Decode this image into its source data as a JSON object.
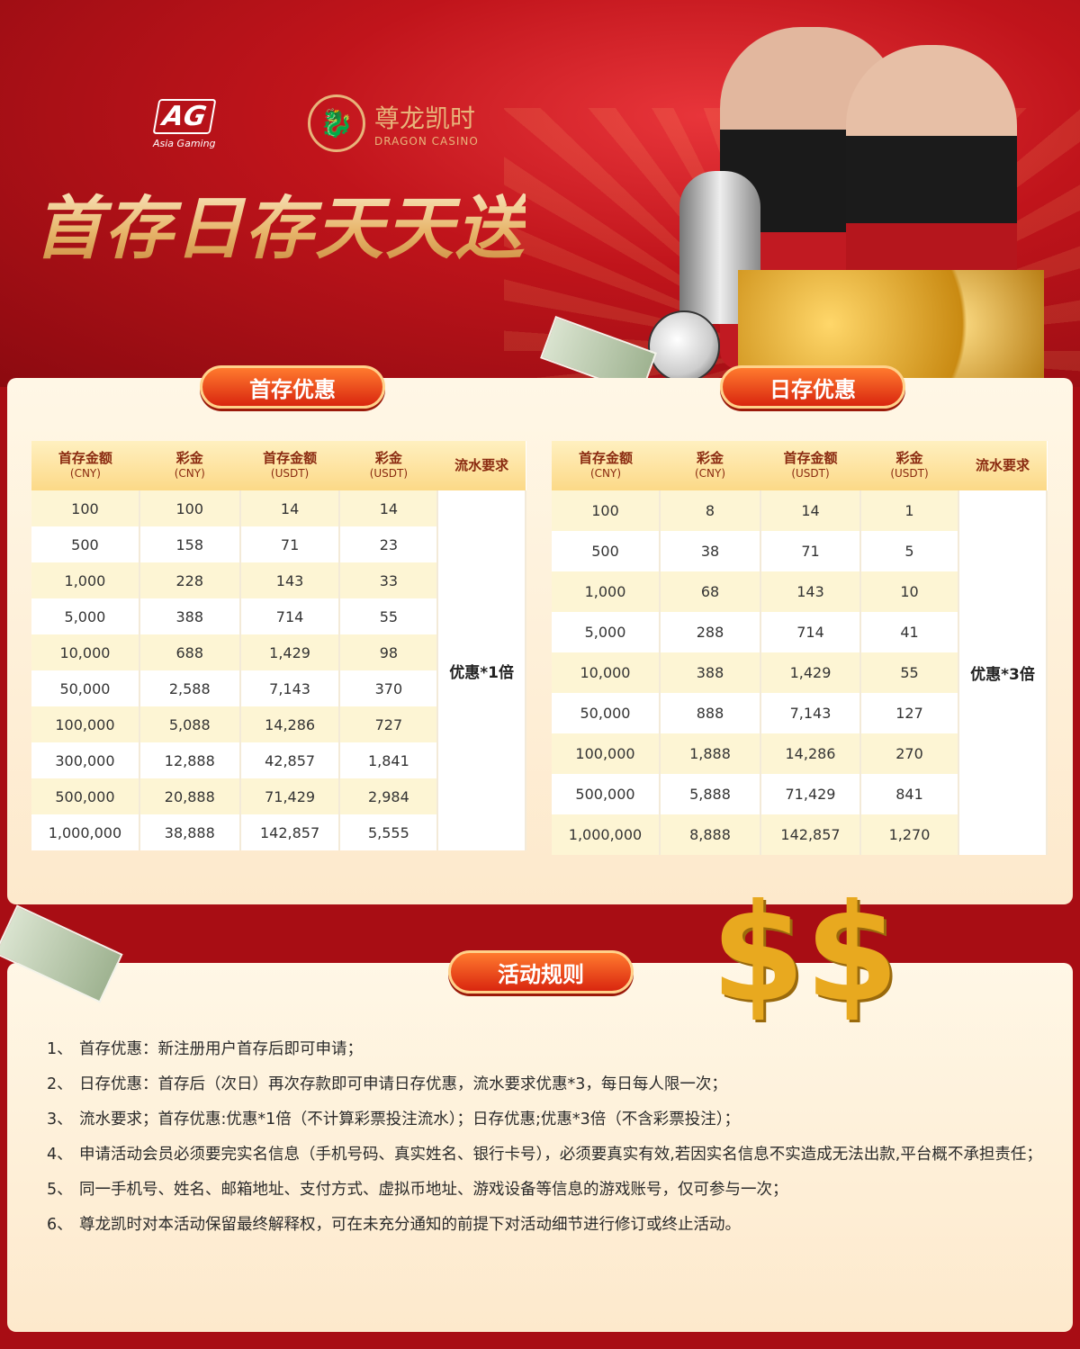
{
  "header": {
    "ag_logo": "AG",
    "ag_sub": "Asia Gaming",
    "casino_cn": "尊龙凯时",
    "casino_en": "DRAGON CASINO",
    "title": "首存日存天天送"
  },
  "colors": {
    "background_red": "#c0141b",
    "panel": "#fff7e6",
    "header_row": "#fcd987",
    "badge": "#e8431a"
  },
  "first_deposit": {
    "badge": "首存优惠",
    "headers": [
      {
        "l1": "首存金额",
        "l2": "(CNY)"
      },
      {
        "l1": "彩金",
        "l2": "(CNY)"
      },
      {
        "l1": "首存金额",
        "l2": "(USDT)"
      },
      {
        "l1": "彩金",
        "l2": "(USDT)"
      },
      {
        "l1": "流水要求",
        "l2": ""
      }
    ],
    "rows": [
      [
        "100",
        "100",
        "14",
        "14"
      ],
      [
        "500",
        "158",
        "71",
        "23"
      ],
      [
        "1,000",
        "228",
        "143",
        "33"
      ],
      [
        "5,000",
        "388",
        "714",
        "55"
      ],
      [
        "10,000",
        "688",
        "1,429",
        "98"
      ],
      [
        "50,000",
        "2,588",
        "7,143",
        "370"
      ],
      [
        "100,000",
        "5,088",
        "14,286",
        "727"
      ],
      [
        "300,000",
        "12,888",
        "42,857",
        "1,841"
      ],
      [
        "500,000",
        "20,888",
        "71,429",
        "2,984"
      ],
      [
        "1,000,000",
        "38,888",
        "142,857",
        "5,555"
      ]
    ],
    "requirement": "优惠*1倍"
  },
  "daily_deposit": {
    "badge": "日存优惠",
    "headers": [
      {
        "l1": "首存金额",
        "l2": "(CNY)"
      },
      {
        "l1": "彩金",
        "l2": "(CNY)"
      },
      {
        "l1": "首存金额",
        "l2": "(USDT)"
      },
      {
        "l1": "彩金",
        "l2": "(USDT)"
      },
      {
        "l1": "流水要求",
        "l2": ""
      }
    ],
    "rows": [
      [
        "100",
        "8",
        "14",
        "1"
      ],
      [
        "500",
        "38",
        "71",
        "5"
      ],
      [
        "1,000",
        "68",
        "143",
        "10"
      ],
      [
        "5,000",
        "288",
        "714",
        "41"
      ],
      [
        "10,000",
        "388",
        "1,429",
        "55"
      ],
      [
        "50,000",
        "888",
        "7,143",
        "127"
      ],
      [
        "100,000",
        "1,888",
        "14,286",
        "270"
      ],
      [
        "500,000",
        "5,888",
        "71,429",
        "841"
      ],
      [
        "1,000,000",
        "8,888",
        "142,857",
        "1,270"
      ]
    ],
    "requirement": "优惠*3倍"
  },
  "rules": {
    "badge": "活动规则",
    "items": [
      {
        "n": "1、",
        "text": "首存优惠：新注册用户首存后即可申请；"
      },
      {
        "n": "2、",
        "text": "日存优惠：首存后（次日）再次存款即可申请日存优惠，流水要求优惠*3，每日每人限一次；"
      },
      {
        "n": "3、",
        "text": "流水要求；首存优惠:优惠*1倍（不计算彩票投注流水）；日存优惠;优惠*3倍（不含彩票投注）；"
      },
      {
        "n": "4、",
        "text": "申请活动会员必须要完实名信息（手机号码、真实姓名、银行卡号），必须要真实有效,若因实名信息不实造成无法出款,平台概不承担责任；"
      },
      {
        "n": "5、",
        "text": "同一手机号、姓名、邮箱地址、支付方式、虚拟币地址、游戏设备等信息的游戏账号，仅可参与一次；"
      },
      {
        "n": "6、",
        "text": "尊龙凯时对本活动保留最终解释权，可在未充分通知的前提下对活动细节进行修订或终止活动。"
      }
    ]
  }
}
